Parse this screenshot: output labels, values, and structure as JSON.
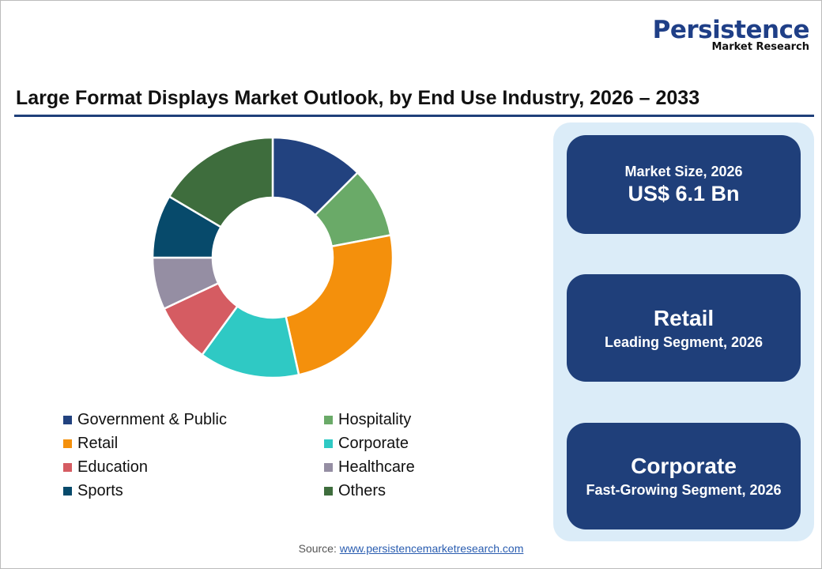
{
  "logo": {
    "line1": "Persistence",
    "line2": "Market Research"
  },
  "title": "Large Format Displays Market Outlook, by End Use Industry, 2026 – 2033",
  "chart_data": {
    "type": "pie",
    "donut": true,
    "title": "Large Format Displays Market Outlook, by End Use Industry, 2026 – 2033",
    "unit": "% share (estimated)",
    "legend_position": "bottom",
    "categories": [
      "Government & Public",
      "Hospitality",
      "Retail",
      "Corporate",
      "Education",
      "Healthcare",
      "Sports",
      "Others"
    ],
    "values": [
      12.5,
      9.5,
      24.5,
      13.5,
      8,
      7,
      8.5,
      16.5
    ],
    "colors": [
      "#22427f",
      "#6aaa68",
      "#f4900c",
      "#2fc9c4",
      "#d55c62",
      "#958ea3",
      "#074a6b",
      "#3e6d3d"
    ]
  },
  "legend_order": [
    0,
    1,
    2,
    3,
    4,
    5,
    6,
    7
  ],
  "cards": [
    {
      "top": "Market Size, 2026",
      "bottom": "US$ 6.1 Bn"
    },
    {
      "top": "Retail",
      "bottom": "Leading Segment, 2026"
    },
    {
      "top": "Corporate",
      "bottom": "Fast-Growing Segment, 2026"
    }
  ],
  "source": {
    "label": "Source: ",
    "link": "www.persistencemarketresearch.com"
  }
}
